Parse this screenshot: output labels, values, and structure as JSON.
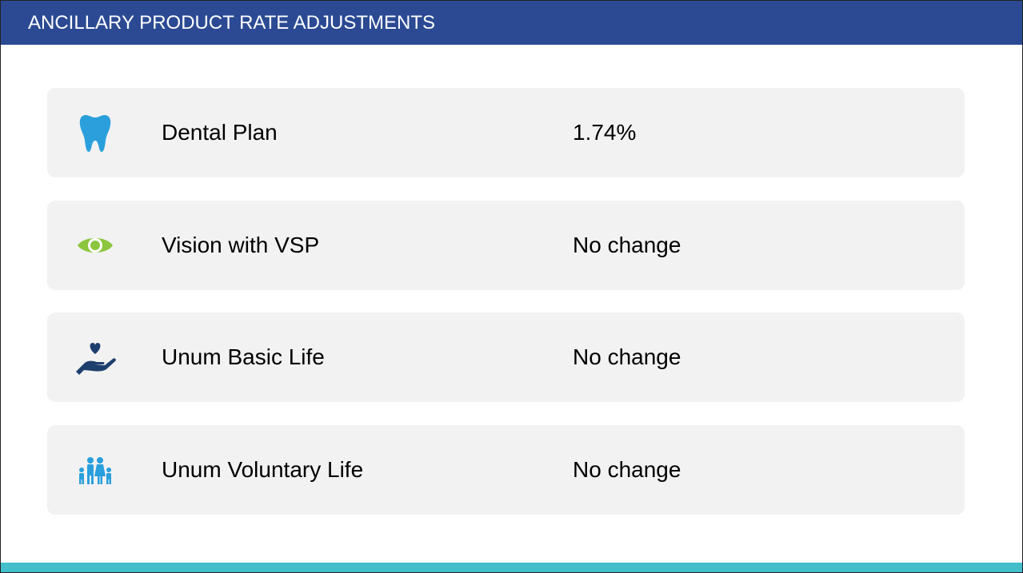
{
  "header": {
    "title": "ANCILLARY PRODUCT RATE ADJUSTMENTS"
  },
  "rows": [
    {
      "label": "Dental Plan",
      "value": "1.74%"
    },
    {
      "label": "Vision with VSP",
      "value": "No change"
    },
    {
      "label": "Unum Basic Life",
      "value": "No change"
    },
    {
      "label": "Unum Voluntary Life",
      "value": "No change"
    }
  ]
}
